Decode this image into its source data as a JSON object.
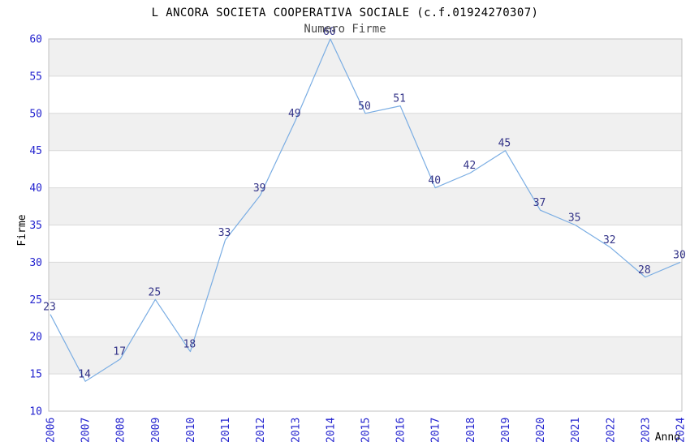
{
  "chart_data": {
    "type": "line",
    "title": "L ANCORA SOCIETA COOPERATIVA SOCIALE (c.f.01924270307)",
    "subtitle": "Numero Firme",
    "xlabel": "Anno",
    "ylabel": "Firme",
    "categories": [
      "2006",
      "2007",
      "2008",
      "2009",
      "2010",
      "2011",
      "2012",
      "2013",
      "2014",
      "2015",
      "2016",
      "2017",
      "2018",
      "2019",
      "2020",
      "2021",
      "2022",
      "2023",
      "2024"
    ],
    "values": [
      23,
      14,
      17,
      25,
      18,
      33,
      39,
      49,
      60,
      50,
      51,
      40,
      42,
      45,
      37,
      35,
      32,
      28,
      30
    ],
    "ylim": [
      10,
      60
    ],
    "ytick_step": 5,
    "grid": true,
    "legend_position": "none",
    "band_fill_order": "top-band-gray-alternating",
    "colors": {
      "line": "#7aade3",
      "point_label": "#333388",
      "tick_label": "#2424cf",
      "band": "#f0f0f0",
      "grid": "#d9d9d9",
      "border": "#c0c0c0",
      "title": "#000000",
      "subtitle": "#4a4a4a",
      "axis_title": "#000000",
      "background": "#ffffff"
    }
  }
}
